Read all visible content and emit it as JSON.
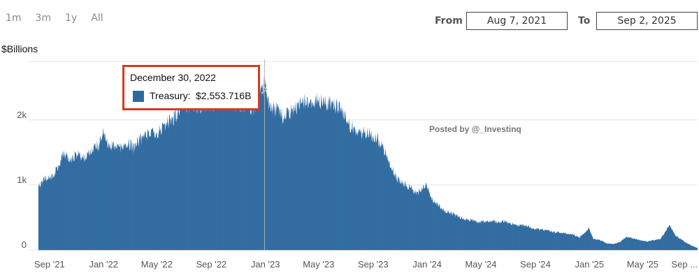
{
  "range_buttons": [
    "1m",
    "3m",
    "1y",
    "All"
  ],
  "date_range": {
    "from_label": "From",
    "from_value": "Aug 7, 2021",
    "to_label": "To",
    "to_value": "Sep 2, 2025"
  },
  "tooltip": {
    "date": "December 30, 2022",
    "series_label": "Treasury:",
    "value": "$2,553.716B",
    "color": "#2f6a9f",
    "highlight_color": "#d9381e"
  },
  "watermark": "Posted by @_Investinq",
  "chart_data": {
    "type": "area",
    "ylabel": "$Billions",
    "ylim": [
      0,
      2900
    ],
    "yticks": [
      0,
      1000,
      2000
    ],
    "ytick_labels": [
      "0",
      "1k",
      "2k"
    ],
    "xtick_labels": [
      "Sep '21",
      "Jan '22",
      "May '22",
      "Sep '22",
      "Jan '23",
      "May '23",
      "Sep '23",
      "Jan '24",
      "May '24",
      "Sep '24",
      "Jan '25",
      "May '25",
      "Sep ..."
    ],
    "xtick_dates": [
      "2021-09-01",
      "2022-01-01",
      "2022-05-01",
      "2022-09-01",
      "2023-01-01",
      "2023-05-01",
      "2023-09-01",
      "2024-01-01",
      "2024-05-01",
      "2024-09-01",
      "2025-01-01",
      "2025-05-01",
      "2025-09-01"
    ],
    "grid": true,
    "series": [
      {
        "name": "Treasury",
        "color": "#2f6a9f",
        "points": [
          [
            "2021-08-07",
            980
          ],
          [
            "2021-08-20",
            1080
          ],
          [
            "2021-09-05",
            1120
          ],
          [
            "2021-09-20",
            1250
          ],
          [
            "2021-10-01",
            1450
          ],
          [
            "2021-10-20",
            1400
          ],
          [
            "2021-11-05",
            1470
          ],
          [
            "2021-11-20",
            1420
          ],
          [
            "2021-12-05",
            1550
          ],
          [
            "2021-12-20",
            1600
          ],
          [
            "2021-12-31",
            1850
          ],
          [
            "2022-01-10",
            1600
          ],
          [
            "2022-01-25",
            1620
          ],
          [
            "2022-02-10",
            1580
          ],
          [
            "2022-02-25",
            1650
          ],
          [
            "2022-03-10",
            1560
          ],
          [
            "2022-03-25",
            1700
          ],
          [
            "2022-04-10",
            1760
          ],
          [
            "2022-04-25",
            1800
          ],
          [
            "2022-05-10",
            1830
          ],
          [
            "2022-05-25",
            1950
          ],
          [
            "2022-06-10",
            2030
          ],
          [
            "2022-06-20",
            2150
          ],
          [
            "2022-06-30",
            2250
          ],
          [
            "2022-07-15",
            2200
          ],
          [
            "2022-08-01",
            2200
          ],
          [
            "2022-08-20",
            2230
          ],
          [
            "2022-09-10",
            2210
          ],
          [
            "2022-09-30",
            2350
          ],
          [
            "2022-10-15",
            2220
          ],
          [
            "2022-11-01",
            2260
          ],
          [
            "2022-11-20",
            2220
          ],
          [
            "2022-12-10",
            2180
          ],
          [
            "2022-12-30",
            2553.716
          ],
          [
            "2023-01-10",
            2200
          ],
          [
            "2023-01-25",
            2150
          ],
          [
            "2023-02-10",
            2060
          ],
          [
            "2023-02-25",
            2100
          ],
          [
            "2023-03-10",
            2180
          ],
          [
            "2023-03-25",
            2250
          ],
          [
            "2023-04-10",
            2280
          ],
          [
            "2023-04-25",
            2310
          ],
          [
            "2023-05-10",
            2280
          ],
          [
            "2023-05-25",
            2250
          ],
          [
            "2023-06-10",
            2200
          ],
          [
            "2023-06-25",
            2120
          ],
          [
            "2023-07-10",
            1900
          ],
          [
            "2023-07-25",
            1850
          ],
          [
            "2023-08-10",
            1800
          ],
          [
            "2023-08-25",
            1780
          ],
          [
            "2023-09-10",
            1720
          ],
          [
            "2023-09-25",
            1550
          ],
          [
            "2023-10-10",
            1300
          ],
          [
            "2023-10-25",
            1100
          ],
          [
            "2023-11-10",
            1020
          ],
          [
            "2023-11-25",
            960
          ],
          [
            "2023-12-10",
            870
          ],
          [
            "2023-12-31",
            1000
          ],
          [
            "2024-01-10",
            800
          ],
          [
            "2024-01-25",
            700
          ],
          [
            "2024-02-10",
            600
          ],
          [
            "2024-02-25",
            570
          ],
          [
            "2024-03-10",
            520
          ],
          [
            "2024-03-25",
            480
          ],
          [
            "2024-04-10",
            460
          ],
          [
            "2024-04-25",
            430
          ],
          [
            "2024-05-10",
            440
          ],
          [
            "2024-05-25",
            450
          ],
          [
            "2024-06-10",
            430
          ],
          [
            "2024-06-25",
            440
          ],
          [
            "2024-07-10",
            400
          ],
          [
            "2024-07-25",
            380
          ],
          [
            "2024-08-10",
            380
          ],
          [
            "2024-08-25",
            330
          ],
          [
            "2024-09-10",
            320
          ],
          [
            "2024-09-25",
            310
          ],
          [
            "2024-10-10",
            280
          ],
          [
            "2024-10-25",
            270
          ],
          [
            "2024-11-10",
            250
          ],
          [
            "2024-11-25",
            240
          ],
          [
            "2024-12-10",
            190
          ],
          [
            "2024-12-31",
            330
          ],
          [
            "2025-01-10",
            170
          ],
          [
            "2025-01-25",
            150
          ],
          [
            "2025-02-10",
            100
          ],
          [
            "2025-02-25",
            90
          ],
          [
            "2025-03-10",
            120
          ],
          [
            "2025-03-25",
            200
          ],
          [
            "2025-04-10",
            180
          ],
          [
            "2025-04-25",
            150
          ],
          [
            "2025-05-10",
            130
          ],
          [
            "2025-05-25",
            150
          ],
          [
            "2025-06-10",
            170
          ],
          [
            "2025-06-30",
            380
          ],
          [
            "2025-07-15",
            220
          ],
          [
            "2025-08-01",
            140
          ],
          [
            "2025-08-15",
            80
          ],
          [
            "2025-09-02",
            30
          ]
        ]
      }
    ]
  }
}
